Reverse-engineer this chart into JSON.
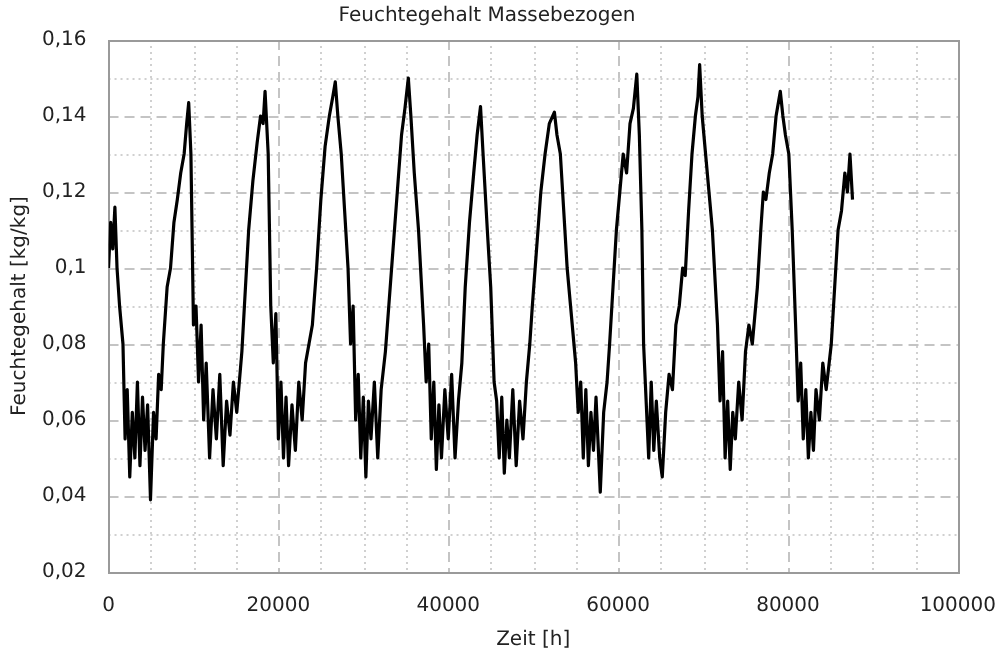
{
  "chart_data": {
    "type": "line",
    "title": "Feuchtegehalt Massebezogen",
    "xlabel": "Zeit [h]",
    "ylabel": "Feuchtegehalt [kg/kg]",
    "xlim": [
      0,
      100000
    ],
    "xticks": [
      0,
      {
        "value": 5000,
        "label": null
      },
      {
        "value": 10000,
        "label": null
      },
      {
        "value": 15000,
        "label": null
      },
      20000,
      {
        "value": 25000,
        "label": null
      },
      {
        "value": 30000,
        "label": null
      },
      {
        "value": 35000,
        "label": null
      },
      40000,
      {
        "value": 45000,
        "label": null
      },
      {
        "value": 50000,
        "label": null
      },
      {
        "value": 55000,
        "label": null
      },
      60000,
      {
        "value": 65000,
        "label": null
      },
      {
        "value": 70000,
        "label": null
      },
      {
        "value": 75000,
        "label": null
      },
      80000,
      {
        "value": 85000,
        "label": null
      },
      {
        "value": 90000,
        "label": null
      },
      {
        "value": 95000,
        "label": null
      },
      100000
    ],
    "ylim": [
      0.02,
      0.16
    ],
    "yticks": [
      {
        "value": 0.02,
        "label": "0,02"
      },
      {
        "value": 0.03,
        "label": null
      },
      {
        "value": 0.04,
        "label": "0,04"
      },
      {
        "value": 0.05,
        "label": null
      },
      {
        "value": 0.06,
        "label": "0,06"
      },
      {
        "value": 0.07,
        "label": null
      },
      {
        "value": 0.08,
        "label": "0,08"
      },
      {
        "value": 0.09,
        "label": null
      },
      {
        "value": 0.1,
        "label": "0,1"
      },
      {
        "value": 0.11,
        "label": null
      },
      {
        "value": 0.12,
        "label": "0,12"
      },
      {
        "value": 0.13,
        "label": null
      },
      {
        "value": 0.14,
        "label": "0,14"
      },
      {
        "value": 0.15,
        "label": null
      },
      {
        "value": 0.16,
        "label": "0,16"
      }
    ],
    "grid": true,
    "legend": false,
    "marker": "none",
    "line_style": "solid",
    "x": [
      0,
      250,
      500,
      750,
      1000,
      1300,
      1700,
      1950,
      2200,
      2500,
      2800,
      3100,
      3400,
      3700,
      4000,
      4300,
      4600,
      4940,
      5300,
      5600,
      5900,
      6200,
      6450,
      6900,
      7300,
      7700,
      8100,
      8500,
      8900,
      9200,
      9440,
      9700,
      10000,
      10300,
      10600,
      10900,
      11200,
      11500,
      11900,
      12300,
      12700,
      13100,
      13500,
      13900,
      14300,
      14700,
      15100,
      15700,
      16000,
      16500,
      17000,
      17500,
      17900,
      18200,
      18430,
      18800,
      19100,
      19400,
      19700,
      20000,
      20300,
      20600,
      20900,
      21200,
      21600,
      22000,
      22400,
      22800,
      23200,
      23600,
      24000,
      24500,
      25000,
      25500,
      26000,
      26400,
      26700,
      27000,
      27400,
      27800,
      28200,
      28500,
      28800,
      29100,
      29400,
      29700,
      30000,
      30300,
      30600,
      30900,
      31300,
      31700,
      32100,
      32600,
      33000,
      33500,
      34000,
      34500,
      34900,
      35300,
      35600,
      36000,
      36500,
      37100,
      37400,
      37700,
      38000,
      38300,
      38600,
      38900,
      39200,
      39600,
      40000,
      40400,
      40800,
      41200,
      41600,
      42000,
      42500,
      43000,
      43400,
      43800,
      44100,
      44600,
      45000,
      45400,
      45700,
      46000,
      46300,
      46600,
      46900,
      47200,
      47600,
      48000,
      48400,
      48800,
      49200,
      49600,
      49900,
      50400,
      50900,
      51400,
      51900,
      52500,
      52800,
      53200,
      53600,
      54000,
      54400,
      55000,
      55300,
      55600,
      55900,
      56200,
      56500,
      56800,
      57100,
      57400,
      57900,
      58300,
      58700,
      59000,
      59400,
      59800,
      60200,
      60600,
      61000,
      61400,
      61800,
      62200,
      62500,
      62800,
      63000,
      63300,
      63600,
      63900,
      64200,
      64500,
      64900,
      65200,
      65600,
      66000,
      66400,
      66800,
      67200,
      67600,
      67900,
      68300,
      68700,
      69100,
      69400,
      69600,
      69900,
      70300,
      70700,
      71100,
      71700,
      72000,
      72300,
      72600,
      72900,
      73200,
      73500,
      73800,
      74200,
      74600,
      75000,
      75400,
      75800,
      76400,
      76800,
      77100,
      77400,
      77800,
      78200,
      78600,
      79100,
      79400,
      79700,
      80100,
      80500,
      80900,
      81200,
      81500,
      81800,
      82100,
      82400,
      82700,
      83000,
      83300,
      83700,
      84100,
      84500,
      85100,
      85500,
      85900,
      86300,
      86700,
      87000,
      87300,
      87600
    ],
    "series": [
      {
        "color": "#000000",
        "values": [
          0.1,
          0.112,
          0.105,
          0.116,
          0.1,
          0.09,
          0.08,
          0.055,
          0.068,
          0.045,
          0.062,
          0.05,
          0.07,
          0.048,
          0.066,
          0.052,
          0.064,
          0.039,
          0.062,
          0.055,
          0.072,
          0.068,
          0.08,
          0.095,
          0.1,
          0.112,
          0.118,
          0.125,
          0.13,
          0.138,
          0.1435,
          0.13,
          0.085,
          0.09,
          0.07,
          0.085,
          0.06,
          0.075,
          0.05,
          0.068,
          0.055,
          0.072,
          0.048,
          0.065,
          0.056,
          0.07,
          0.062,
          0.078,
          0.09,
          0.11,
          0.123,
          0.133,
          0.14,
          0.138,
          0.1465,
          0.13,
          0.09,
          0.075,
          0.088,
          0.055,
          0.07,
          0.05,
          0.066,
          0.048,
          0.064,
          0.052,
          0.07,
          0.06,
          0.075,
          0.08,
          0.085,
          0.1,
          0.118,
          0.132,
          0.14,
          0.145,
          0.149,
          0.14,
          0.13,
          0.115,
          0.1,
          0.08,
          0.09,
          0.06,
          0.072,
          0.05,
          0.066,
          0.045,
          0.065,
          0.055,
          0.07,
          0.05,
          0.068,
          0.078,
          0.09,
          0.105,
          0.12,
          0.135,
          0.142,
          0.15,
          0.14,
          0.125,
          0.11,
          0.085,
          0.07,
          0.08,
          0.055,
          0.07,
          0.047,
          0.064,
          0.05,
          0.068,
          0.055,
          0.072,
          0.05,
          0.065,
          0.075,
          0.095,
          0.112,
          0.125,
          0.135,
          0.1425,
          0.13,
          0.11,
          0.095,
          0.07,
          0.065,
          0.05,
          0.066,
          0.046,
          0.06,
          0.05,
          0.068,
          0.048,
          0.065,
          0.055,
          0.07,
          0.08,
          0.09,
          0.105,
          0.12,
          0.13,
          0.138,
          0.141,
          0.135,
          0.13,
          0.115,
          0.1,
          0.09,
          0.075,
          0.062,
          0.07,
          0.05,
          0.068,
          0.048,
          0.062,
          0.052,
          0.066,
          0.041,
          0.062,
          0.07,
          0.08,
          0.095,
          0.11,
          0.12,
          0.13,
          0.125,
          0.138,
          0.142,
          0.151,
          0.135,
          0.11,
          0.08,
          0.065,
          0.05,
          0.07,
          0.052,
          0.065,
          0.05,
          0.045,
          0.062,
          0.072,
          0.068,
          0.085,
          0.09,
          0.1,
          0.098,
          0.115,
          0.13,
          0.14,
          0.145,
          0.1535,
          0.14,
          0.13,
          0.12,
          0.11,
          0.085,
          0.065,
          0.078,
          0.05,
          0.065,
          0.047,
          0.062,
          0.055,
          0.07,
          0.06,
          0.078,
          0.085,
          0.08,
          0.095,
          0.11,
          0.12,
          0.118,
          0.125,
          0.13,
          0.14,
          0.1465,
          0.14,
          0.135,
          0.13,
          0.11,
          0.085,
          0.065,
          0.075,
          0.055,
          0.068,
          0.05,
          0.062,
          0.052,
          0.068,
          0.06,
          0.075,
          0.068,
          0.08,
          0.095,
          0.11,
          0.115,
          0.125,
          0.12,
          0.13,
          0.118
        ]
      }
    ]
  }
}
